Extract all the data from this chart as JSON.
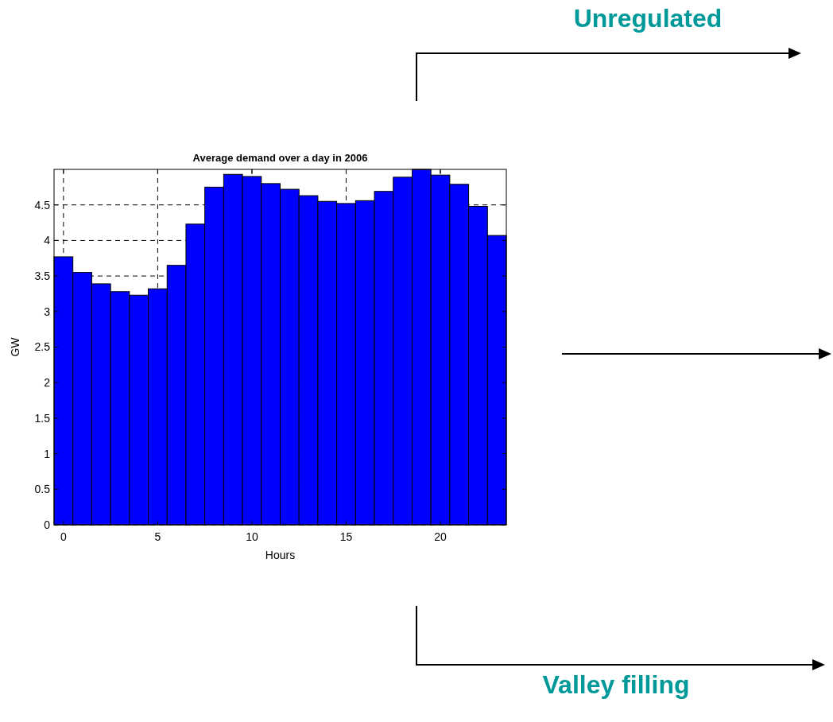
{
  "chart_data": {
    "type": "bar",
    "title": "Average demand over a day in 2006",
    "xlabel": "Hours",
    "ylabel": "GW",
    "x": [
      0,
      1,
      2,
      3,
      4,
      5,
      6,
      7,
      8,
      9,
      10,
      11,
      12,
      13,
      14,
      15,
      16,
      17,
      18,
      19,
      20,
      21,
      22,
      23
    ],
    "values": [
      3.77,
      3.55,
      3.39,
      3.28,
      3.23,
      3.32,
      3.65,
      4.23,
      4.75,
      4.93,
      4.9,
      4.8,
      4.72,
      4.63,
      4.55,
      4.52,
      4.56,
      4.69,
      4.89,
      5.0,
      4.92,
      4.79,
      4.48,
      4.07
    ],
    "color": "#0000ff",
    "xlim": [
      -0.5,
      23.5
    ],
    "xticks": [
      0,
      5,
      10,
      15,
      20
    ],
    "ylim": [
      0,
      5
    ],
    "yticks": [
      0,
      0.5,
      1,
      1.5,
      2,
      2.5,
      3,
      3.5,
      4,
      4.5
    ],
    "grid": true,
    "annotations": [
      "Unregulated",
      "Valley filling"
    ]
  }
}
